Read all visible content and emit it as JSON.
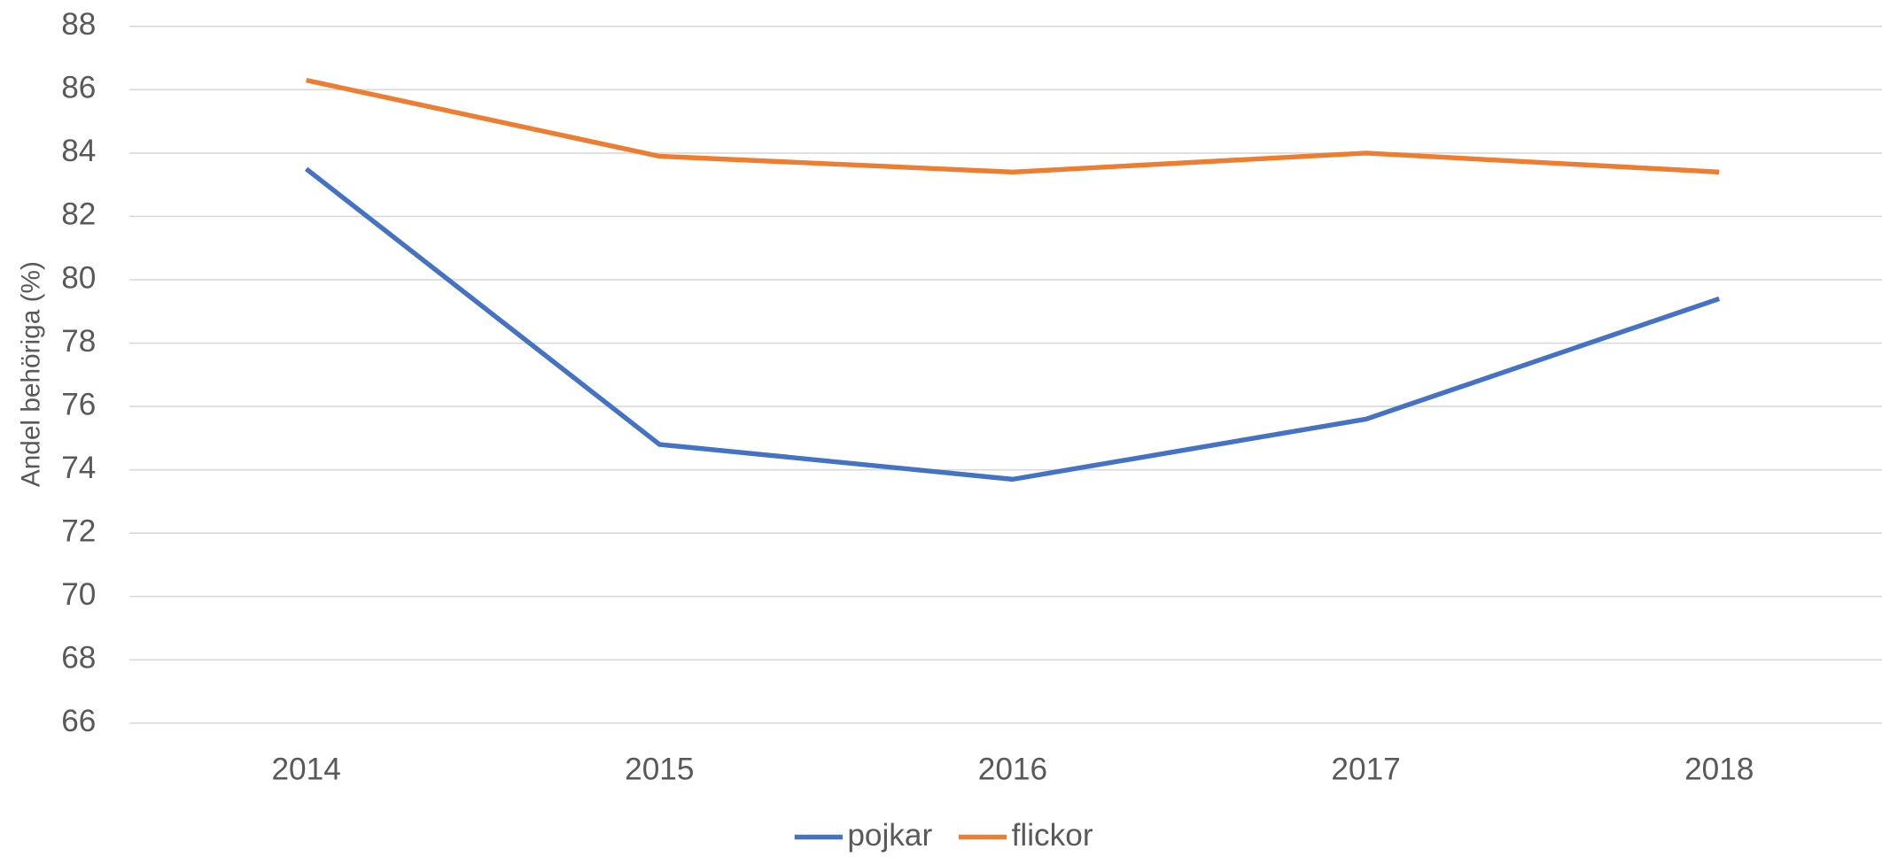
{
  "chart_data": {
    "type": "line",
    "y_label": "Andel behöriga (%)",
    "categories": [
      "2014",
      "2015",
      "2016",
      "2017",
      "2018"
    ],
    "series": [
      {
        "name": "pojkar",
        "color": "#4472c4",
        "values": [
          83.5,
          74.8,
          73.7,
          75.6,
          79.4
        ]
      },
      {
        "name": "flickor",
        "color": "#ed7d31",
        "values": [
          86.3,
          83.9,
          83.4,
          84.0,
          83.4
        ]
      }
    ],
    "ylim": [
      66,
      88
    ],
    "yticks": [
      66,
      68,
      70,
      72,
      74,
      76,
      78,
      80,
      82,
      84,
      86,
      88
    ],
    "grid": true,
    "legend": "bottom"
  }
}
